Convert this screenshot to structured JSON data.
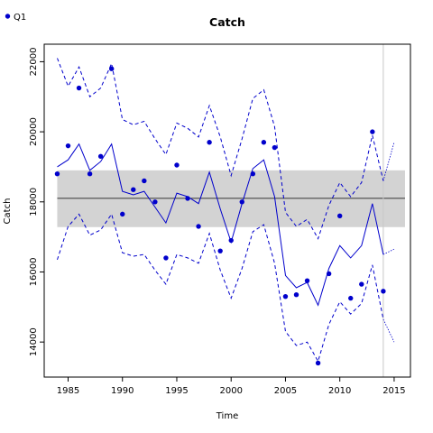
{
  "chart_data": {
    "type": "line",
    "title": "Catch",
    "xlabel": "Time",
    "ylabel": "Catch",
    "xlim": [
      1982.8,
      2016.5
    ],
    "ylim": [
      13000,
      22500
    ],
    "xticks": [
      1985,
      1990,
      1995,
      2000,
      2005,
      2010,
      2015
    ],
    "yticks": [
      14000,
      16000,
      18000,
      20000,
      22000
    ],
    "grid": false,
    "legend": {
      "position": "top-left",
      "entries": [
        "Q1"
      ]
    },
    "colors": {
      "series": "#0000cc",
      "band": "#d3d3d3",
      "reference": "#000000",
      "vline": "#c8c8c8"
    },
    "observed": {
      "name": "Q1",
      "x": [
        1984,
        1985,
        1986,
        1987,
        1988,
        1989,
        1990,
        1991,
        1992,
        1993,
        1994,
        1995,
        1996,
        1997,
        1998,
        1999,
        2000,
        2001,
        2002,
        2003,
        2004,
        2005,
        2006,
        2007,
        2008,
        2009,
        2010,
        2011,
        2012,
        2013,
        2014
      ],
      "y": [
        18800,
        19600,
        21250,
        18800,
        19300,
        21800,
        17650,
        18350,
        18600,
        18000,
        16400,
        19050,
        18100,
        17300,
        19700,
        16600,
        16900,
        18000,
        18800,
        19700,
        19550,
        15300,
        15350,
        15750,
        13400,
        15950,
        17600,
        15250,
        15650,
        20000,
        15450
      ]
    },
    "fit": {
      "x": [
        1984,
        1985,
        1986,
        1987,
        1988,
        1989,
        1990,
        1991,
        1992,
        1993,
        1994,
        1995,
        1996,
        1997,
        1998,
        1999,
        2000,
        2001,
        2002,
        2003,
        2004,
        2005,
        2006,
        2007,
        2008,
        2009,
        2010,
        2011,
        2012,
        2013,
        2014
      ],
      "y": [
        19000,
        19200,
        19650,
        18900,
        19150,
        19650,
        18300,
        18200,
        18300,
        17850,
        17400,
        18250,
        18150,
        17950,
        18850,
        17800,
        16850,
        17950,
        18950,
        19200,
        18150,
        15900,
        15550,
        15700,
        15050,
        16100,
        16750,
        16400,
        16750,
        17950,
        16500
      ]
    },
    "fit_upper": {
      "x": [
        1984,
        1985,
        1986,
        1987,
        1988,
        1989,
        1990,
        1991,
        1992,
        1993,
        1994,
        1995,
        1996,
        1997,
        1998,
        1999,
        2000,
        2001,
        2002,
        2003,
        2004,
        2005,
        2006,
        2007,
        2008,
        2009,
        2010,
        2011,
        2012,
        2013,
        2014
      ],
      "y": [
        22100,
        21300,
        21850,
        21000,
        21250,
        21950,
        20350,
        20200,
        20300,
        19800,
        19350,
        20250,
        20100,
        19850,
        20750,
        19850,
        18750,
        19800,
        20950,
        21200,
        20150,
        17700,
        17300,
        17500,
        16950,
        17900,
        18550,
        18150,
        18550,
        19900,
        18600
      ]
    },
    "fit_lower": {
      "x": [
        1984,
        1985,
        1986,
        1987,
        1988,
        1989,
        1990,
        1991,
        1992,
        1993,
        1994,
        1995,
        1996,
        1997,
        1998,
        1999,
        2000,
        2001,
        2002,
        2003,
        2004,
        2005,
        2006,
        2007,
        2008,
        2009,
        2010,
        2011,
        2012,
        2013,
        2014
      ],
      "y": [
        16350,
        17300,
        17650,
        17050,
        17200,
        17650,
        16550,
        16450,
        16500,
        16050,
        15650,
        16500,
        16400,
        16250,
        17100,
        16050,
        15250,
        16100,
        17150,
        17350,
        16250,
        14300,
        13900,
        14000,
        13450,
        14500,
        15150,
        14800,
        15100,
        16200,
        14650
      ]
    },
    "projection": {
      "x": [
        2014,
        2015
      ],
      "y": [
        16500,
        16650
      ]
    },
    "projection_upper": {
      "x": [
        2014,
        2015
      ],
      "y": [
        18600,
        19700
      ]
    },
    "projection_lower": {
      "x": [
        2014,
        2015
      ],
      "y": [
        14650,
        14000
      ]
    },
    "reference_line": 18100,
    "reference_band": {
      "low": 17280,
      "high": 18900,
      "x_start": 1984,
      "x_end": 2016
    },
    "vline_x": 2014
  }
}
